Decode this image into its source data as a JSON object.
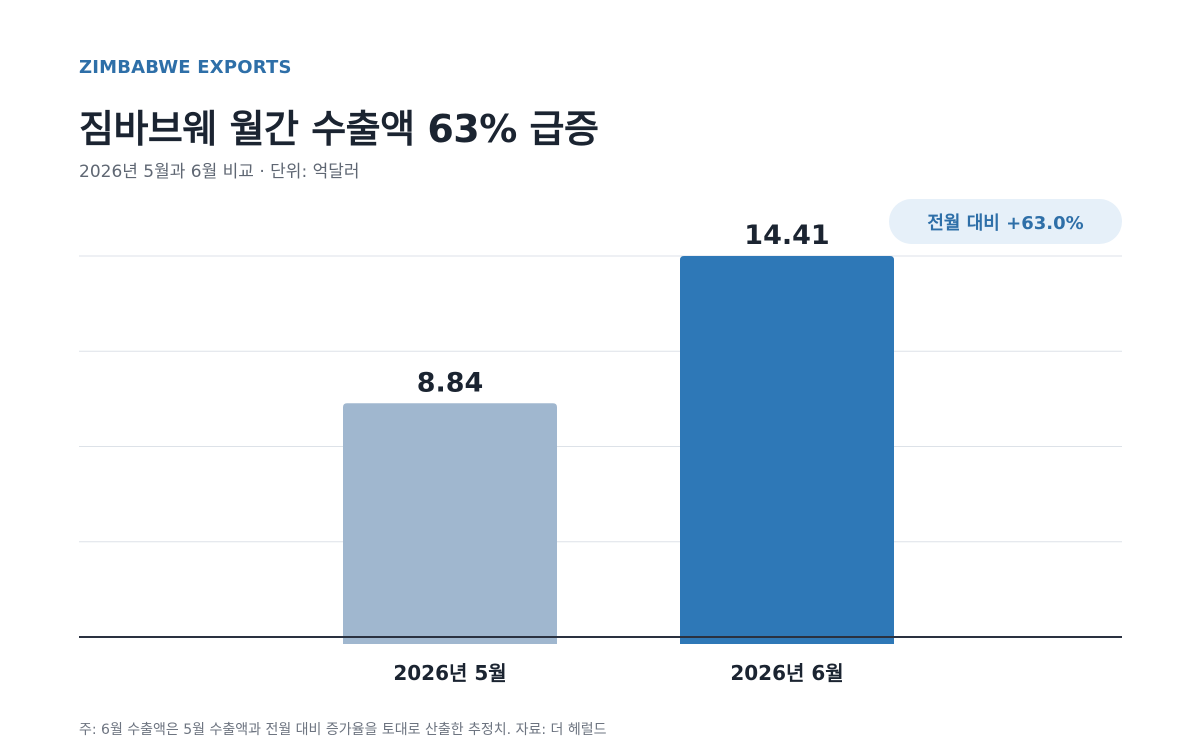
{
  "kicker": "ZIMBABWE EXPORTS",
  "title": "짐바브웨 월간 수출액 63% 급증",
  "subtitle": "2026년 5월과 6월 비교 · 단위: 억달러",
  "badge": "전월 대비 +63.0%",
  "footnote": "주: 6월 수출액은 5월 수출액과 전월 대비 증가율을 토대로 산출한 추정치. 자료: 더 헤럴드",
  "colors": {
    "bar_may": "#a0b7cf",
    "bar_june": "#2e78b7",
    "accent": "#2e6fa8",
    "grid": "#dde2e8",
    "baseline": "#2a3140"
  },
  "chart_data": {
    "type": "bar",
    "categories": [
      "2026년 5월",
      "2026년 6월"
    ],
    "values": [
      8.84,
      14.41
    ],
    "value_labels": [
      "8.84",
      "14.41"
    ],
    "title": "짐바브웨 월간 수출액 63% 급증",
    "xlabel": "",
    "ylabel": "",
    "ylim": [
      0,
      14.41
    ],
    "grid": true,
    "gridline_count": 4,
    "legend": "none"
  }
}
